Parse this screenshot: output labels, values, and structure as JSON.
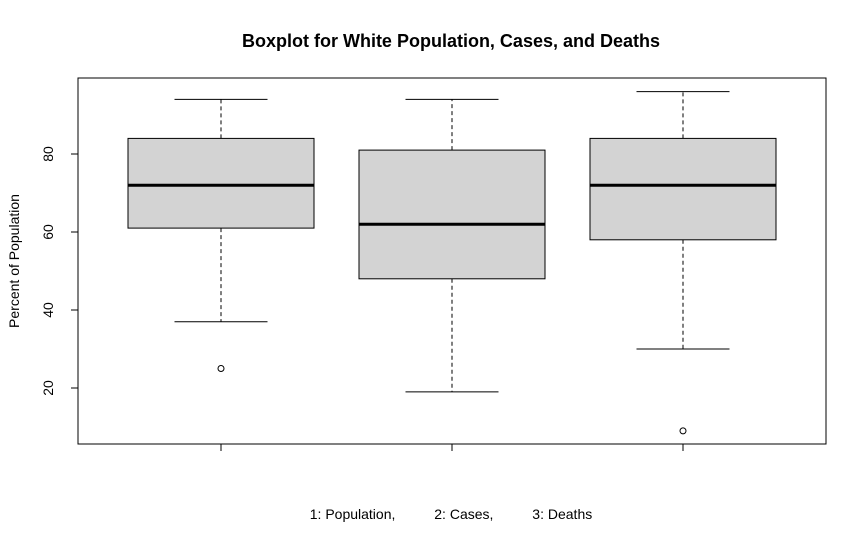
{
  "chart_data": {
    "type": "boxplot",
    "title": "Boxplot for White Population, Cases, and Deaths",
    "ylabel": "Percent of Population",
    "xlabel": "1: Population,          2: Cases,          3: Deaths",
    "ylim": [
      5,
      98
    ],
    "yticks": [
      "20",
      "40",
      "60",
      "80"
    ],
    "ytick_values": [
      20,
      40,
      60,
      80
    ],
    "boxes": [
      {
        "lower_whisker": 37,
        "q1": 61,
        "median": 72,
        "q3": 84,
        "upper_whisker": 94,
        "outliers": [
          25
        ]
      },
      {
        "lower_whisker": 19,
        "q1": 48,
        "median": 62,
        "q3": 81,
        "upper_whisker": 94,
        "outliers": []
      },
      {
        "lower_whisker": 30,
        "q1": 58,
        "median": 72,
        "q3": 84,
        "upper_whisker": 96,
        "outliers": [
          9
        ]
      }
    ],
    "box_fill": "#d3d3d3"
  }
}
